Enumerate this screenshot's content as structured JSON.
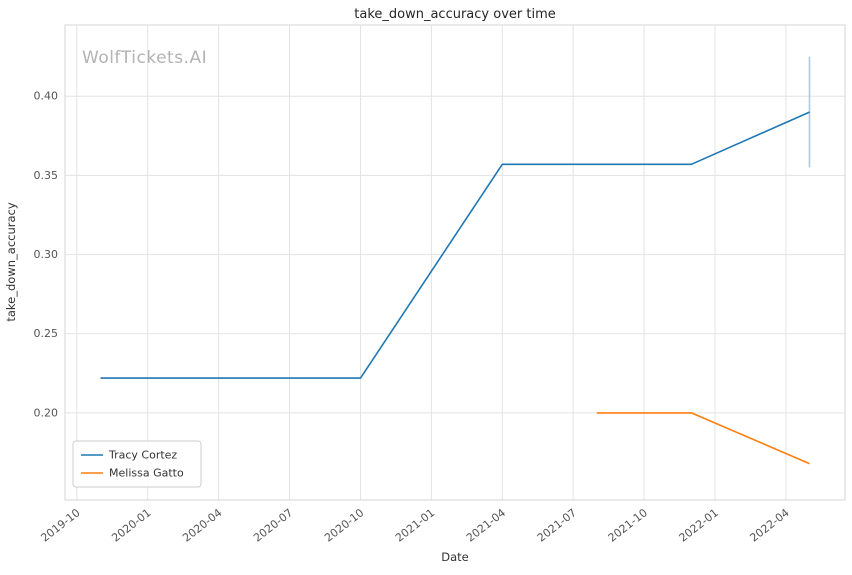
{
  "chart_data": {
    "type": "line",
    "title": "take_down_accuracy over time",
    "xlabel": "Date",
    "ylabel": "take_down_accuracy",
    "watermark": "WolfTickets.AI",
    "grid": true,
    "legend_position": "lower-left",
    "x_unit": "months since 2019-10",
    "xlim": [
      -0.5,
      32.5
    ],
    "ylim": [
      0.145,
      0.445
    ],
    "x_ticks": [
      {
        "label": "2019-10",
        "month": 0
      },
      {
        "label": "2020-01",
        "month": 3
      },
      {
        "label": "2020-04",
        "month": 6
      },
      {
        "label": "2020-07",
        "month": 9
      },
      {
        "label": "2020-10",
        "month": 12
      },
      {
        "label": "2021-01",
        "month": 15
      },
      {
        "label": "2021-04",
        "month": 18
      },
      {
        "label": "2021-07",
        "month": 21
      },
      {
        "label": "2021-10",
        "month": 24
      },
      {
        "label": "2022-01",
        "month": 27
      },
      {
        "label": "2022-04",
        "month": 30
      }
    ],
    "y_ticks": [
      0.2,
      0.25,
      0.3,
      0.35,
      0.4
    ],
    "series": [
      {
        "name": "Tracy Cortez",
        "color": "#1f77b4",
        "points": [
          {
            "x": 1,
            "date": "2019-11",
            "y": 0.222
          },
          {
            "x": 12,
            "date": "2020-10",
            "y": 0.222
          },
          {
            "x": 18,
            "date": "2021-04",
            "y": 0.357
          },
          {
            "x": 26,
            "date": "2021-12",
            "y": 0.357
          },
          {
            "x": 31,
            "date": "2022-05",
            "y": 0.39
          }
        ]
      },
      {
        "name": "Melissa Gatto",
        "color": "#ff7f0e",
        "points": [
          {
            "x": 22,
            "date": "2021-08",
            "y": 0.2
          },
          {
            "x": 26,
            "date": "2021-12",
            "y": 0.2
          },
          {
            "x": 31,
            "date": "2022-05",
            "y": 0.168
          }
        ]
      }
    ],
    "error_bar": {
      "series": "Tracy Cortez",
      "x": 31,
      "date": "2022-05",
      "y_low": 0.355,
      "y_high": 0.425,
      "color": "#aec7e8"
    },
    "colors": {
      "grid": "#e3e3e3",
      "spine": "#d4d4d4",
      "tick_label": "#555555",
      "title": "#262626",
      "watermark": "#b3b3b3",
      "legend_border": "#cccccc",
      "legend_text": "#333333"
    }
  }
}
